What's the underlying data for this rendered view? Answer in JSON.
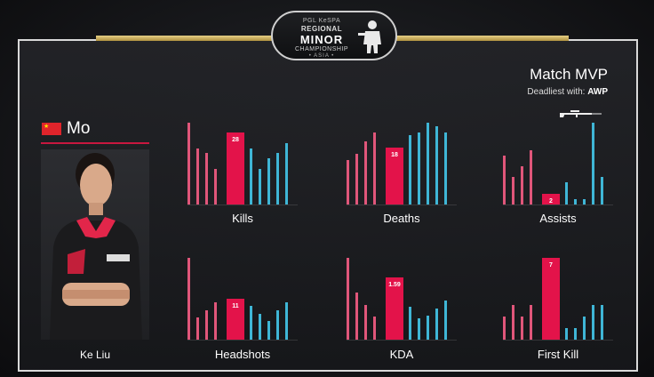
{
  "logo": {
    "line1": "PGL KeSPA",
    "line2": "REGIONAL",
    "line3": "MINOR",
    "line4": "CHAMPIONSHIP",
    "line5": "• ASIA •"
  },
  "mvp": {
    "title": "Match MVP",
    "deadliest_prefix": "Deadliest with: ",
    "weapon": "AWP"
  },
  "player": {
    "nickname": "Mo",
    "real_name": "Ke Liu",
    "flag": "china-flag"
  },
  "colors": {
    "highlight": "#e3134a",
    "team_a": "#e0567a",
    "team_b": "#3fb6d6",
    "gold": "#c9ab5a"
  },
  "chart_data": [
    {
      "type": "bar",
      "title": "Kills",
      "highlight_label": "28",
      "highlight_index": 4,
      "values": [
        32,
        22,
        20,
        14,
        28,
        22,
        14,
        18,
        20,
        24
      ]
    },
    {
      "type": "bar",
      "title": "Deaths",
      "highlight_label": "18",
      "highlight_index": 4,
      "values": [
        14,
        16,
        20,
        23,
        18,
        22,
        23,
        26,
        25,
        23
      ]
    },
    {
      "type": "bar",
      "title": "Assists",
      "highlight_label": "2",
      "highlight_index": 4,
      "values": [
        9,
        5,
        7,
        10,
        2,
        4,
        1,
        1,
        15,
        5
      ]
    },
    {
      "type": "bar",
      "title": "Headshots",
      "highlight_label": "11",
      "highlight_index": 4,
      "values": [
        22,
        6,
        8,
        10,
        11,
        9,
        7,
        5,
        8,
        10
      ]
    },
    {
      "type": "bar",
      "title": "KDA",
      "highlight_label": "1.59",
      "highlight_index": 4,
      "values": [
        2.1,
        1.2,
        0.9,
        0.6,
        1.59,
        0.85,
        0.55,
        0.62,
        0.81,
        1.0
      ]
    },
    {
      "type": "bar",
      "title": "First Kill",
      "highlight_label": "7",
      "highlight_index": 4,
      "values": [
        2,
        3,
        2,
        3,
        7,
        1,
        1,
        2,
        3,
        3
      ]
    }
  ]
}
